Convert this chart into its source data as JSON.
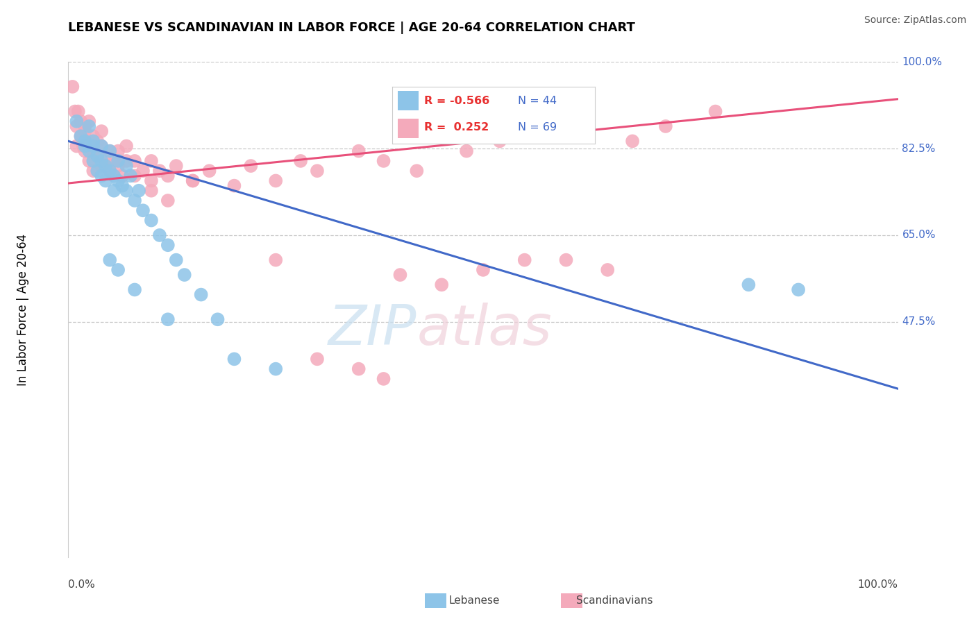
{
  "title": "LEBANESE VS SCANDINAVIAN IN LABOR FORCE | AGE 20-64 CORRELATION CHART",
  "source": "Source: ZipAtlas.com",
  "ylabel": "In Labor Force | Age 20-64",
  "ytick_labels": [
    "47.5%",
    "65.0%",
    "82.5%",
    "100.0%"
  ],
  "ytick_values": [
    0.475,
    0.65,
    0.825,
    1.0
  ],
  "xlim": [
    0.0,
    1.0
  ],
  "ylim": [
    0.0,
    1.0
  ],
  "legend_r_blue": "-0.566",
  "legend_n_blue": "44",
  "legend_r_pink": "0.252",
  "legend_n_pink": "69",
  "blue_color": "#8DC4E8",
  "pink_color": "#F4AABB",
  "blue_line_color": "#4169C8",
  "pink_line_color": "#E8507A",
  "blue_x": [
    0.01,
    0.015,
    0.02,
    0.02,
    0.025,
    0.025,
    0.03,
    0.03,
    0.03,
    0.035,
    0.035,
    0.04,
    0.04,
    0.04,
    0.045,
    0.045,
    0.05,
    0.05,
    0.055,
    0.055,
    0.06,
    0.06,
    0.065,
    0.07,
    0.07,
    0.075,
    0.08,
    0.085,
    0.09,
    0.1,
    0.11,
    0.12,
    0.13,
    0.14,
    0.16,
    0.18,
    0.05,
    0.06,
    0.08,
    0.12,
    0.2,
    0.25,
    0.82,
    0.88
  ],
  "blue_y": [
    0.88,
    0.85,
    0.84,
    0.83,
    0.87,
    0.82,
    0.84,
    0.8,
    0.83,
    0.81,
    0.78,
    0.8,
    0.77,
    0.83,
    0.79,
    0.76,
    0.82,
    0.78,
    0.77,
    0.74,
    0.8,
    0.76,
    0.75,
    0.79,
    0.74,
    0.77,
    0.72,
    0.74,
    0.7,
    0.68,
    0.65,
    0.63,
    0.6,
    0.57,
    0.53,
    0.48,
    0.6,
    0.58,
    0.54,
    0.48,
    0.4,
    0.38,
    0.55,
    0.54
  ],
  "pink_x": [
    0.005,
    0.008,
    0.01,
    0.01,
    0.012,
    0.015,
    0.015,
    0.018,
    0.02,
    0.02,
    0.02,
    0.025,
    0.025,
    0.025,
    0.03,
    0.03,
    0.03,
    0.035,
    0.035,
    0.04,
    0.04,
    0.04,
    0.045,
    0.05,
    0.05,
    0.055,
    0.06,
    0.06,
    0.065,
    0.07,
    0.07,
    0.08,
    0.08,
    0.09,
    0.1,
    0.1,
    0.11,
    0.12,
    0.13,
    0.15,
    0.17,
    0.2,
    0.22,
    0.25,
    0.28,
    0.3,
    0.35,
    0.38,
    0.42,
    0.48,
    0.52,
    0.57,
    0.62,
    0.68,
    0.72,
    0.78,
    0.25,
    0.55,
    0.6,
    0.65,
    0.4,
    0.45,
    0.5,
    0.3,
    0.35,
    0.38,
    0.1,
    0.12,
    0.15
  ],
  "pink_y": [
    0.95,
    0.9,
    0.87,
    0.83,
    0.9,
    0.85,
    0.88,
    0.83,
    0.87,
    0.82,
    0.86,
    0.8,
    0.84,
    0.88,
    0.82,
    0.78,
    0.85,
    0.81,
    0.84,
    0.79,
    0.83,
    0.86,
    0.8,
    0.82,
    0.78,
    0.8,
    0.79,
    0.82,
    0.77,
    0.8,
    0.83,
    0.77,
    0.8,
    0.78,
    0.76,
    0.8,
    0.78,
    0.77,
    0.79,
    0.76,
    0.78,
    0.75,
    0.79,
    0.76,
    0.8,
    0.78,
    0.82,
    0.8,
    0.78,
    0.82,
    0.84,
    0.86,
    0.88,
    0.84,
    0.87,
    0.9,
    0.6,
    0.6,
    0.6,
    0.58,
    0.57,
    0.55,
    0.58,
    0.4,
    0.38,
    0.36,
    0.74,
    0.72,
    0.76
  ],
  "blue_line_x0": 0.0,
  "blue_line_y0": 0.84,
  "blue_line_x1": 1.0,
  "blue_line_y1": 0.34,
  "pink_line_x0": 0.0,
  "pink_line_y0": 0.755,
  "pink_line_x1": 1.0,
  "pink_line_y1": 0.925
}
